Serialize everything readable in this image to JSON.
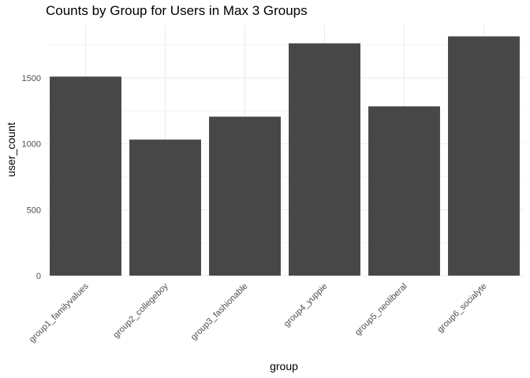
{
  "chart_data": {
    "type": "bar",
    "title": "Counts by Group for Users in Max 3 Groups",
    "xlabel": "group",
    "ylabel": "user_count",
    "categories": [
      "group1_familyvalues",
      "group2_collegeboy",
      "group3_fashionable",
      "group4_yuppie",
      "group5_neoliberal",
      "group6_socialyte"
    ],
    "values": [
      1510,
      1032,
      1206,
      1762,
      1284,
      1815
    ],
    "ylim": [
      0,
      1900
    ],
    "yticks": [
      0,
      500,
      1000,
      1500
    ],
    "grid": true,
    "bar_color": "#474747",
    "grid_color": "#ebebeb"
  }
}
